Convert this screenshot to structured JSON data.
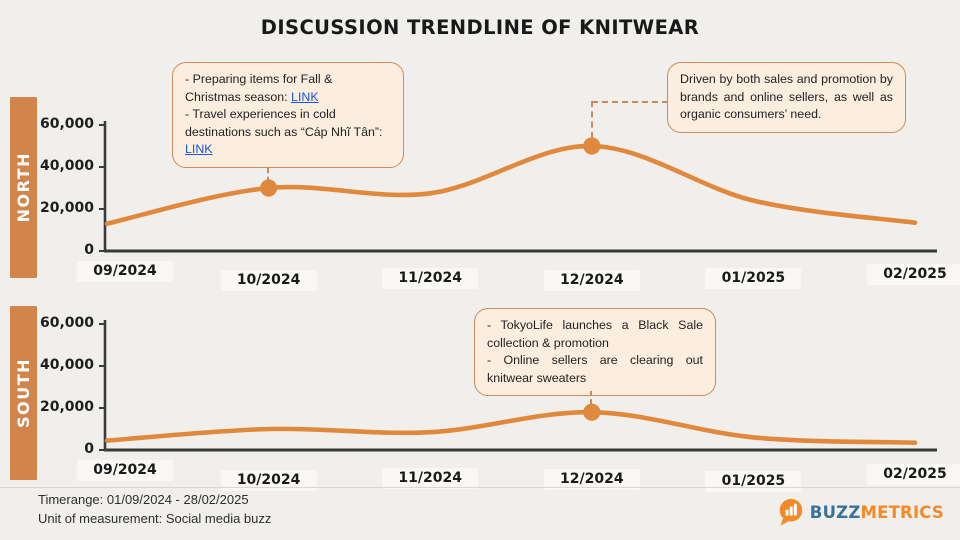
{
  "page": {
    "title": "DISCUSSION TRENDLINE OF KNITWEAR"
  },
  "colors": {
    "background": "#F1EFEC",
    "band": "#D2854B",
    "line": "#E0893C",
    "marker": "#DE893E",
    "axis": "#3A3A3A",
    "annotation_bg": "#FBEEDF",
    "annotation_border": "#CB8A59",
    "link": "#1A56DB",
    "logo_blue": "#38719A",
    "logo_orange": "#F28A28"
  },
  "chart_data": [
    {
      "type": "line",
      "title": "NORTH",
      "region": "NORTH",
      "x": [
        "09/2024",
        "10/2024",
        "11/2024",
        "12/2024",
        "01/2025",
        "02/2025"
      ],
      "values": [
        13000,
        30000,
        27500,
        50000,
        24000,
        13500
      ],
      "ylim": [
        0,
        60000
      ],
      "yticks": [
        0,
        20000,
        40000,
        60000
      ],
      "ytick_labels": [
        "0",
        "20,000",
        "40,000",
        "60,000"
      ],
      "grid": false,
      "legend": "none",
      "marked_points": [
        {
          "x": "10/2024",
          "value": 30000
        },
        {
          "x": "12/2024",
          "value": 50000
        }
      ]
    },
    {
      "type": "line",
      "title": "SOUTH",
      "region": "SOUTH",
      "x": [
        "09/2024",
        "10/2024",
        "11/2024",
        "12/2024",
        "01/2025",
        "02/2025"
      ],
      "values": [
        4500,
        10000,
        8500,
        18000,
        6000,
        3500
      ],
      "ylim": [
        0,
        60000
      ],
      "yticks": [
        0,
        20000,
        40000,
        60000
      ],
      "ytick_labels": [
        "0",
        "20,000",
        "40,000",
        "60,000"
      ],
      "grid": false,
      "legend": "none",
      "marked_points": [
        {
          "x": "12/2024",
          "value": 18000
        }
      ]
    }
  ],
  "annotations": {
    "north_oct": {
      "items": [
        {
          "text": "- Preparing items for Fall & Christmas season: ",
          "link": "LINK"
        },
        {
          "text": "- Travel experiences in cold destinations such as “Cáp Nhĩ Tân”: ",
          "link": "LINK"
        }
      ]
    },
    "north_dec": {
      "text": "Driven by both sales and promotion by brands and online sellers, as well as organic consumers’ need."
    },
    "south_dec": {
      "lines": [
        "- TokyoLife launches a Black Sale collection & promotion",
        "- Online sellers are clearing out knitwear sweaters"
      ]
    }
  },
  "footer": {
    "timerange": "Timerange: 01/09/2024 - 28/02/2025",
    "unit": "Unit of measurement: Social media buzz",
    "logo": {
      "buzz": "BUZZ",
      "metrics": "METRICS"
    }
  }
}
